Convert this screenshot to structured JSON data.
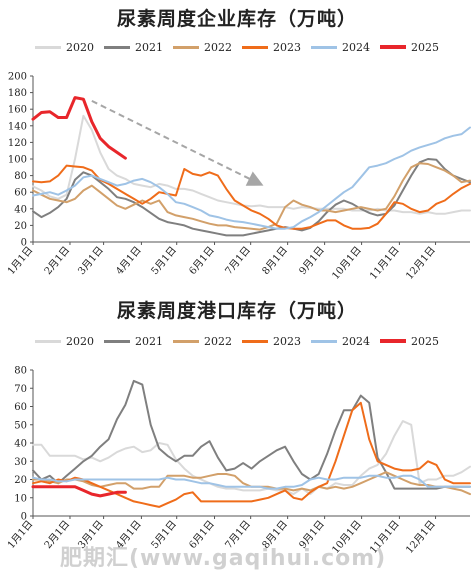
{
  "colors": {
    "2020": "#d9d9d9",
    "2021": "#7f7f7f",
    "2022": "#d2a06a",
    "2023": "#ef6c1a",
    "2024": "#9fc3e6",
    "2025": "#e8262b",
    "trend_arrow": "#a6a6a6"
  },
  "watermark": "肥期汇(www.gaqihui.com)",
  "chart_data": [
    {
      "type": "line",
      "title": "尿素周度企业库存（万吨）",
      "xlabel": "",
      "ylabel": "",
      "ylim": [
        0,
        200
      ],
      "yticks": [
        0,
        20,
        40,
        60,
        80,
        100,
        120,
        140,
        160,
        180,
        200
      ],
      "xlim": [
        0,
        52
      ],
      "xtick_labels": [
        "1月1日",
        "2月1日",
        "3月1日",
        "4月1日",
        "5月1日",
        "6月1日",
        "7月1日",
        "8月1日",
        "9月1日",
        "10月1日",
        "11月1日",
        "12月1日"
      ],
      "xtick_weeks": [
        0,
        4.4,
        8.4,
        12.9,
        17.1,
        21.6,
        25.9,
        30.3,
        34.7,
        39.1,
        43.6,
        47.9
      ],
      "legend_position": "top",
      "grid": false,
      "annotation": "dashed downward trend arrow from about week 7 (y 170) to week 27 (y 70)",
      "series": [
        {
          "name": "2020",
          "values": [
            67,
            62,
            55,
            52,
            57,
            100,
            152,
            135,
            108,
            88,
            80,
            76,
            70,
            68,
            66,
            70,
            68,
            64,
            64,
            62,
            58,
            54,
            50,
            48,
            46,
            44,
            43,
            44,
            42,
            42,
            42,
            40,
            42,
            41,
            40,
            40,
            40,
            40,
            38,
            38,
            38,
            40,
            38,
            38,
            36,
            36,
            34,
            36,
            34,
            34,
            36,
            38,
            38
          ]
        },
        {
          "name": "2021",
          "values": [
            37,
            30,
            35,
            42,
            52,
            75,
            84,
            80,
            72,
            64,
            54,
            52,
            48,
            42,
            35,
            28,
            24,
            22,
            20,
            16,
            14,
            12,
            10,
            8,
            8,
            8,
            10,
            12,
            14,
            16,
            18,
            16,
            14,
            17,
            25,
            36,
            45,
            50,
            46,
            40,
            35,
            32,
            34,
            44,
            62,
            80,
            96,
            100,
            99,
            88,
            80,
            76,
            72
          ]
        },
        {
          "name": "2022",
          "values": [
            62,
            57,
            52,
            50,
            48,
            52,
            62,
            68,
            60,
            52,
            44,
            40,
            45,
            50,
            46,
            50,
            36,
            32,
            30,
            28,
            25,
            22,
            20,
            20,
            18,
            17,
            16,
            15,
            18,
            22,
            42,
            50,
            45,
            42,
            38,
            38,
            36,
            38,
            40,
            42,
            40,
            38,
            40,
            55,
            74,
            90,
            95,
            94,
            90,
            86,
            80,
            72,
            74
          ]
        },
        {
          "name": "2023",
          "values": [
            73,
            72,
            73,
            80,
            92,
            91,
            90,
            86,
            75,
            70,
            64,
            58,
            52,
            46,
            52,
            60,
            58,
            56,
            88,
            82,
            80,
            84,
            80,
            64,
            50,
            44,
            38,
            34,
            28,
            20,
            17,
            16,
            16,
            18,
            22,
            26,
            26,
            20,
            16,
            16,
            17,
            22,
            34,
            48,
            46,
            40,
            36,
            38,
            46,
            50,
            58,
            65,
            70
          ]
        },
        {
          "name": "2024",
          "values": [
            56,
            58,
            60,
            57,
            62,
            68,
            78,
            80,
            76,
            72,
            68,
            70,
            74,
            76,
            72,
            66,
            58,
            48,
            46,
            42,
            38,
            32,
            30,
            27,
            25,
            24,
            22,
            20,
            18,
            16,
            16,
            18,
            25,
            30,
            36,
            44,
            52,
            60,
            66,
            78,
            90,
            92,
            95,
            100,
            104,
            110,
            114,
            117,
            120,
            125,
            128,
            130,
            138
          ]
        },
        {
          "name": "2025",
          "values": [
            148,
            156,
            157,
            150,
            150,
            174,
            172,
            145,
            125,
            115,
            108,
            101
          ]
        }
      ]
    },
    {
      "type": "line",
      "title": "尿素周度港口库存（万吨）",
      "xlabel": "",
      "ylabel": "",
      "ylim": [
        0,
        80
      ],
      "yticks": [
        0,
        10,
        20,
        30,
        40,
        50,
        60,
        70,
        80
      ],
      "xlim": [
        0,
        52
      ],
      "xtick_labels": [
        "1月1日",
        "2月1日",
        "3月1日",
        "4月1日",
        "5月1日",
        "6月1日",
        "7月1日",
        "8月1日",
        "9月1日",
        "10月1日",
        "11月1日",
        "12月1日"
      ],
      "xtick_weeks": [
        0,
        4.4,
        8.4,
        12.9,
        17.1,
        21.6,
        25.9,
        30.3,
        34.7,
        39.1,
        43.6,
        47.9
      ],
      "legend_position": "top",
      "grid": false,
      "series": [
        {
          "name": "2020",
          "values": [
            39,
            39,
            33,
            33,
            33,
            33,
            31,
            32,
            30,
            32,
            35,
            37,
            38,
            35,
            36,
            40,
            39,
            31,
            26,
            22,
            20,
            18,
            16,
            15,
            15,
            14,
            14,
            14,
            15,
            14,
            14,
            12,
            15,
            12,
            16,
            15,
            18,
            17,
            17,
            22,
            26,
            28,
            34,
            44,
            52,
            50,
            18,
            20,
            20,
            22,
            22,
            24,
            27
          ]
        },
        {
          "name": "2021",
          "values": [
            25,
            20,
            22,
            18,
            22,
            26,
            30,
            33,
            38,
            42,
            53,
            61,
            74,
            72,
            50,
            37,
            33,
            30,
            33,
            33,
            38,
            41,
            32,
            25,
            26,
            29,
            26,
            30,
            33,
            36,
            38,
            30,
            23,
            20,
            23,
            34,
            47,
            58,
            58,
            66,
            62,
            32,
            24,
            15,
            15,
            15,
            15,
            15,
            15,
            16,
            16,
            16,
            16
          ]
        },
        {
          "name": "2022",
          "values": [
            20,
            20,
            19,
            18,
            20,
            20,
            19,
            17,
            16,
            17,
            18,
            18,
            15,
            15,
            16,
            16,
            22,
            22,
            22,
            21,
            21,
            22,
            23,
            23,
            22,
            18,
            16,
            16,
            16,
            15,
            15,
            14,
            15,
            14,
            16,
            15,
            16,
            15,
            16,
            18,
            20,
            22,
            24,
            22,
            20,
            18,
            17,
            17,
            16,
            16,
            15,
            14,
            12
          ]
        },
        {
          "name": "2023",
          "values": [
            18,
            19,
            18,
            20,
            19,
            21,
            20,
            18,
            16,
            14,
            12,
            10,
            8,
            7,
            6,
            5,
            7,
            9,
            12,
            13,
            8,
            8,
            8,
            8,
            8,
            8,
            8,
            9,
            10,
            12,
            14,
            10,
            9,
            13,
            16,
            18,
            30,
            44,
            58,
            62,
            42,
            30,
            28,
            26,
            25,
            25,
            26,
            30,
            28,
            20,
            18,
            18,
            18
          ]
        },
        {
          "name": "2024",
          "values": [
            21,
            20,
            20,
            19,
            19,
            20,
            20,
            20,
            20,
            20,
            20,
            20,
            20,
            20,
            20,
            20,
            21,
            20,
            20,
            19,
            18,
            18,
            17,
            16,
            16,
            16,
            16,
            16,
            15,
            15,
            16,
            16,
            17,
            20,
            21,
            20,
            20,
            21,
            21,
            21,
            22,
            22,
            21,
            21,
            22,
            22,
            20,
            16,
            16,
            16,
            16,
            16,
            16
          ]
        },
        {
          "name": "2025",
          "values": [
            16,
            16,
            16,
            16,
            16,
            16,
            14,
            12,
            11,
            12,
            13,
            13
          ]
        }
      ]
    }
  ]
}
